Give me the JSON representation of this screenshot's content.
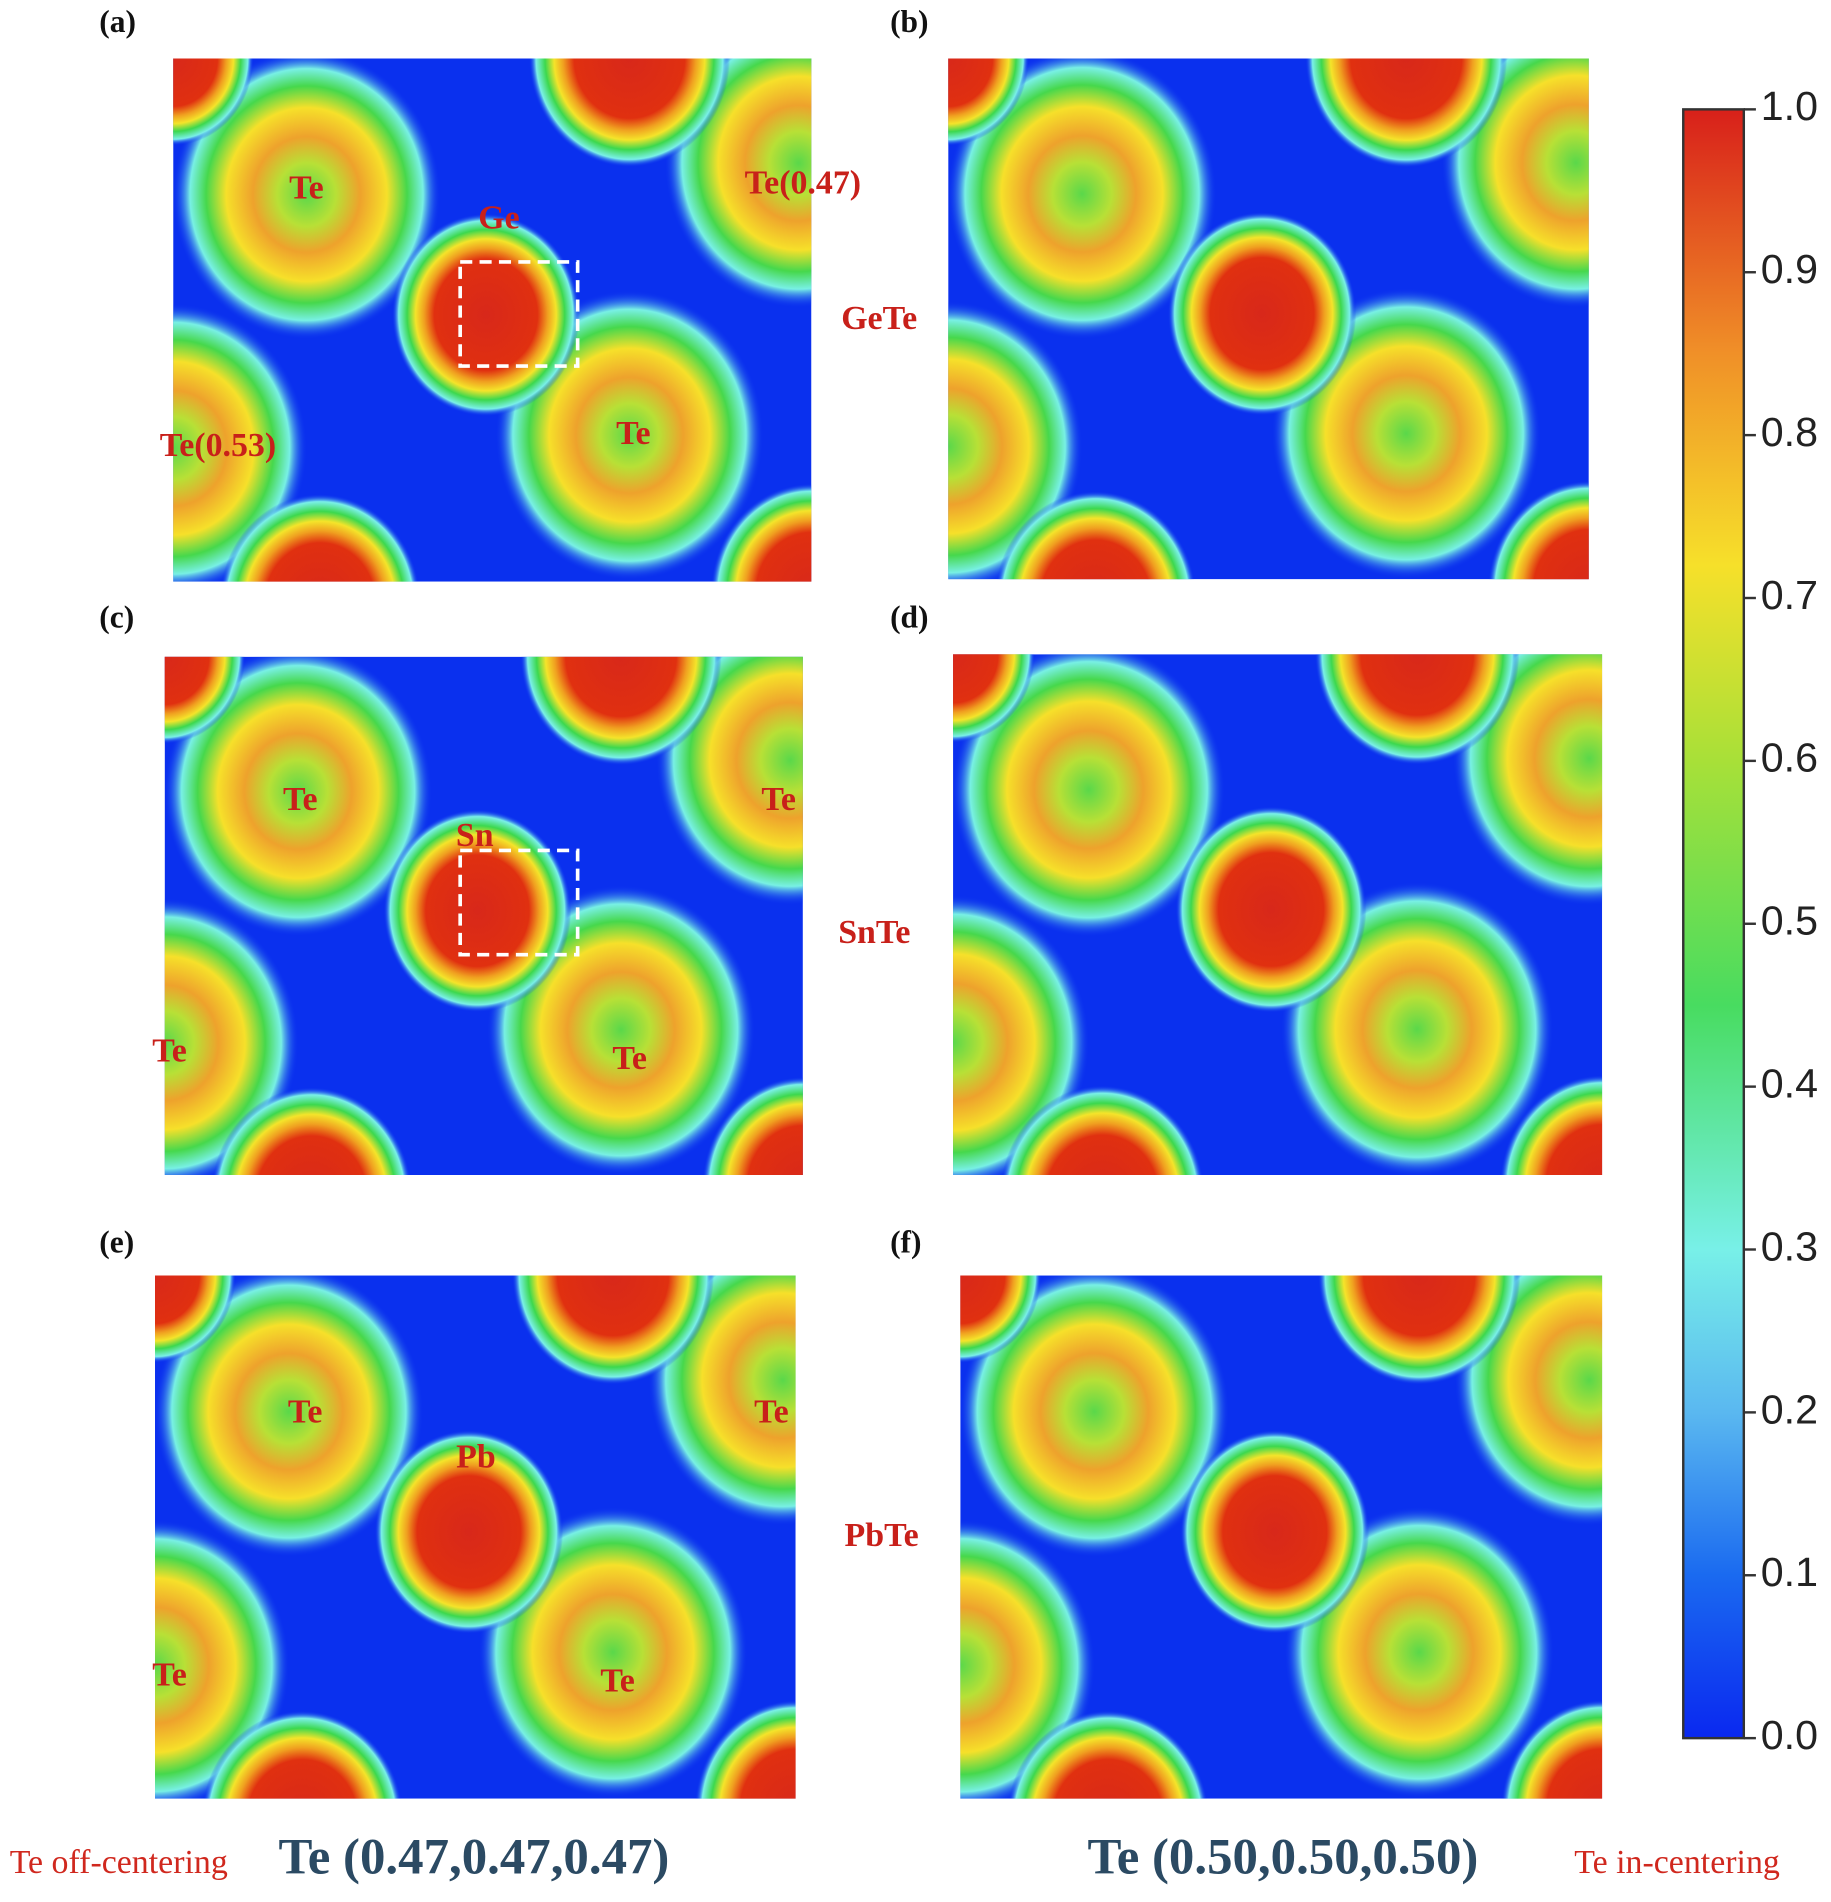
{
  "panels": [
    {
      "label": "(a)",
      "atoms": [
        "Te",
        "Te(0.47)",
        "Ge",
        "Te(0.53)",
        "Te"
      ]
    },
    {
      "label": "(b)"
    },
    {
      "label": "(c)",
      "atoms": [
        "Te",
        "Te",
        "Sn",
        "Te",
        "Te"
      ]
    },
    {
      "label": "(d)"
    },
    {
      "label": "(e)",
      "atoms": [
        "Te",
        "Te",
        "Pb",
        "Te",
        "Te"
      ]
    },
    {
      "label": "(f)"
    }
  ],
  "compounds": [
    "GeTe",
    "SnTe",
    "PbTe"
  ],
  "colorbar": {
    "lim": [
      0,
      1
    ],
    "ticks": [
      {
        "value": 0,
        "label": "0.0"
      },
      0.1,
      0.2,
      0.3,
      0.4,
      0.5,
      0.6,
      0.7,
      0.8,
      0.9,
      {
        "value": 1,
        "label": "1.0"
      }
    ]
  },
  "captions": {
    "left_note": "Te off-centering",
    "left": "Te (0.47,0.47,0.47)",
    "right": "Te (0.50,0.50,0.50)",
    "right_note": "Te in-centering"
  }
}
